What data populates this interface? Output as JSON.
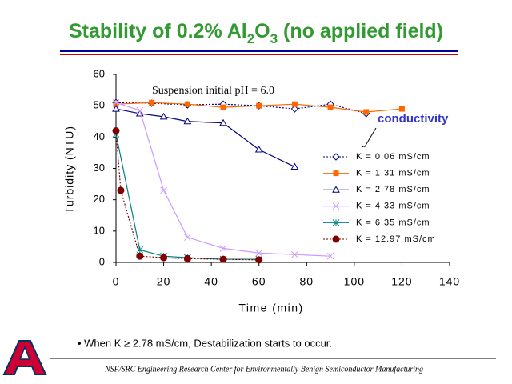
{
  "title_parts": [
    "Stability of 0.2% Al",
    "2",
    "O",
    "3",
    " (no applied field)"
  ],
  "chart_data": {
    "type": "line",
    "x_label": "Time (min)",
    "y_label": "Turbidity (NTU)",
    "xlim": [
      0,
      140
    ],
    "xticks": [
      0,
      20,
      40,
      60,
      80,
      100,
      120,
      140
    ],
    "ylim": [
      0,
      60
    ],
    "yticks": [
      0,
      10,
      20,
      30,
      40,
      50,
      60
    ],
    "grid": false,
    "legend_position": "center right",
    "annotations": [
      "Suspension initial pH = 6.0",
      "conductivity"
    ],
    "series": [
      {
        "name": "K = 0.06 mS/cm",
        "color": "#000080",
        "marker": "diamond",
        "line_style": "dotted",
        "x": [
          0,
          15,
          30,
          45,
          60,
          75,
          90,
          105
        ],
        "values": [
          51,
          50.8,
          50.3,
          50.5,
          50,
          49,
          50.5,
          47.5
        ]
      },
      {
        "name": "K = 1.31 mS/cm",
        "color": "#ff6600",
        "marker": "square",
        "line_style": "solid",
        "x": [
          0,
          15,
          30,
          45,
          60,
          75,
          90,
          105,
          120
        ],
        "values": [
          50.5,
          51,
          50.5,
          49.5,
          50,
          50.5,
          49.5,
          48,
          49
        ]
      },
      {
        "name": "K = 2.78 mS/cm",
        "color": "#000080",
        "marker": "triangle",
        "line_style": "solid",
        "x": [
          0,
          10,
          20,
          30,
          45,
          60,
          75
        ],
        "values": [
          49,
          47.5,
          46.5,
          45,
          44.5,
          36,
          30.5
        ]
      },
      {
        "name": "K = 4.33 mS/cm",
        "color": "#cc99ff",
        "marker": "x",
        "line_style": "solid",
        "x": [
          0,
          10,
          20,
          30,
          45,
          60,
          75,
          90
        ],
        "values": [
          51,
          48.5,
          23,
          8,
          4.5,
          3,
          2.5,
          2
        ]
      },
      {
        "name": "K = 6.35 mS/cm",
        "color": "#008080",
        "marker": "star",
        "line_style": "solid",
        "x": [
          0,
          10,
          20,
          30,
          45,
          60
        ],
        "values": [
          41,
          4,
          2,
          1.5,
          1,
          1
        ]
      },
      {
        "name": "K = 12.97 mS/cm",
        "color": "#800000",
        "marker": "circle",
        "line_style": "dotted",
        "x": [
          0,
          2,
          10,
          20,
          30,
          45,
          60
        ],
        "values": [
          42,
          23,
          2,
          1.5,
          1.2,
          1,
          0.8
        ]
      }
    ]
  },
  "note": "• When K ≥ 2.78 mS/cm, Destabilization starts to occur.",
  "footer": "NSF/SRC Engineering Research Center for Environmentally Benign Semiconductor Manufacturing"
}
